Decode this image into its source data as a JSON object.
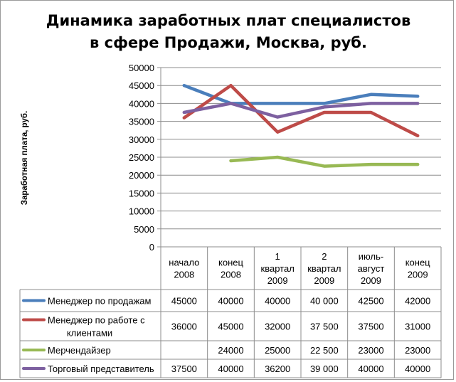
{
  "chart_data": {
    "type": "line",
    "title_lines": [
      "Динамика заработных плат специалистов",
      "в сфере Продажи, Москва, руб."
    ],
    "ylabel": "Заработная плата, руб.",
    "ylim": [
      0,
      50000
    ],
    "yticks": [
      0,
      5000,
      10000,
      15000,
      20000,
      25000,
      30000,
      35000,
      40000,
      45000,
      50000
    ],
    "categories": [
      [
        "начало",
        "2008"
      ],
      [
        "конец",
        "2008"
      ],
      [
        "1",
        "квартал",
        "2009"
      ],
      [
        "2",
        "квартал",
        "2009"
      ],
      [
        "июль-",
        "август",
        "2009"
      ],
      [
        "конец",
        "2009"
      ]
    ],
    "grid": "horizontal",
    "legend": "data-table",
    "series": [
      {
        "name_lines": [
          "Менеджер по продажам"
        ],
        "color": "#4a7ebb",
        "values": [
          45000,
          40000,
          40000,
          40000,
          42500,
          42000
        ],
        "labels": [
          "45000",
          "40000",
          "40000",
          "40 000",
          "42500",
          "42000"
        ]
      },
      {
        "name_lines": [
          "Менеджер по работе с",
          "клиентами"
        ],
        "color": "#be4b48",
        "values": [
          36000,
          45000,
          32000,
          37500,
          37500,
          31000
        ],
        "labels": [
          "36000",
          "45000",
          "32000",
          "37 500",
          "37500",
          "31000"
        ]
      },
      {
        "name_lines": [
          "Мерчендайзер"
        ],
        "color": "#98b954",
        "values": [
          null,
          24000,
          25000,
          22500,
          23000,
          23000
        ],
        "labels": [
          "",
          "24000",
          "25000",
          "22 500",
          "23000",
          "23000"
        ]
      },
      {
        "name_lines": [
          "Торговый представитель"
        ],
        "color": "#7d60a0",
        "values": [
          37500,
          40000,
          36200,
          39000,
          40000,
          40000
        ],
        "labels": [
          "37500",
          "40000",
          "36200",
          "39 000",
          "40000",
          "40000"
        ]
      }
    ]
  }
}
